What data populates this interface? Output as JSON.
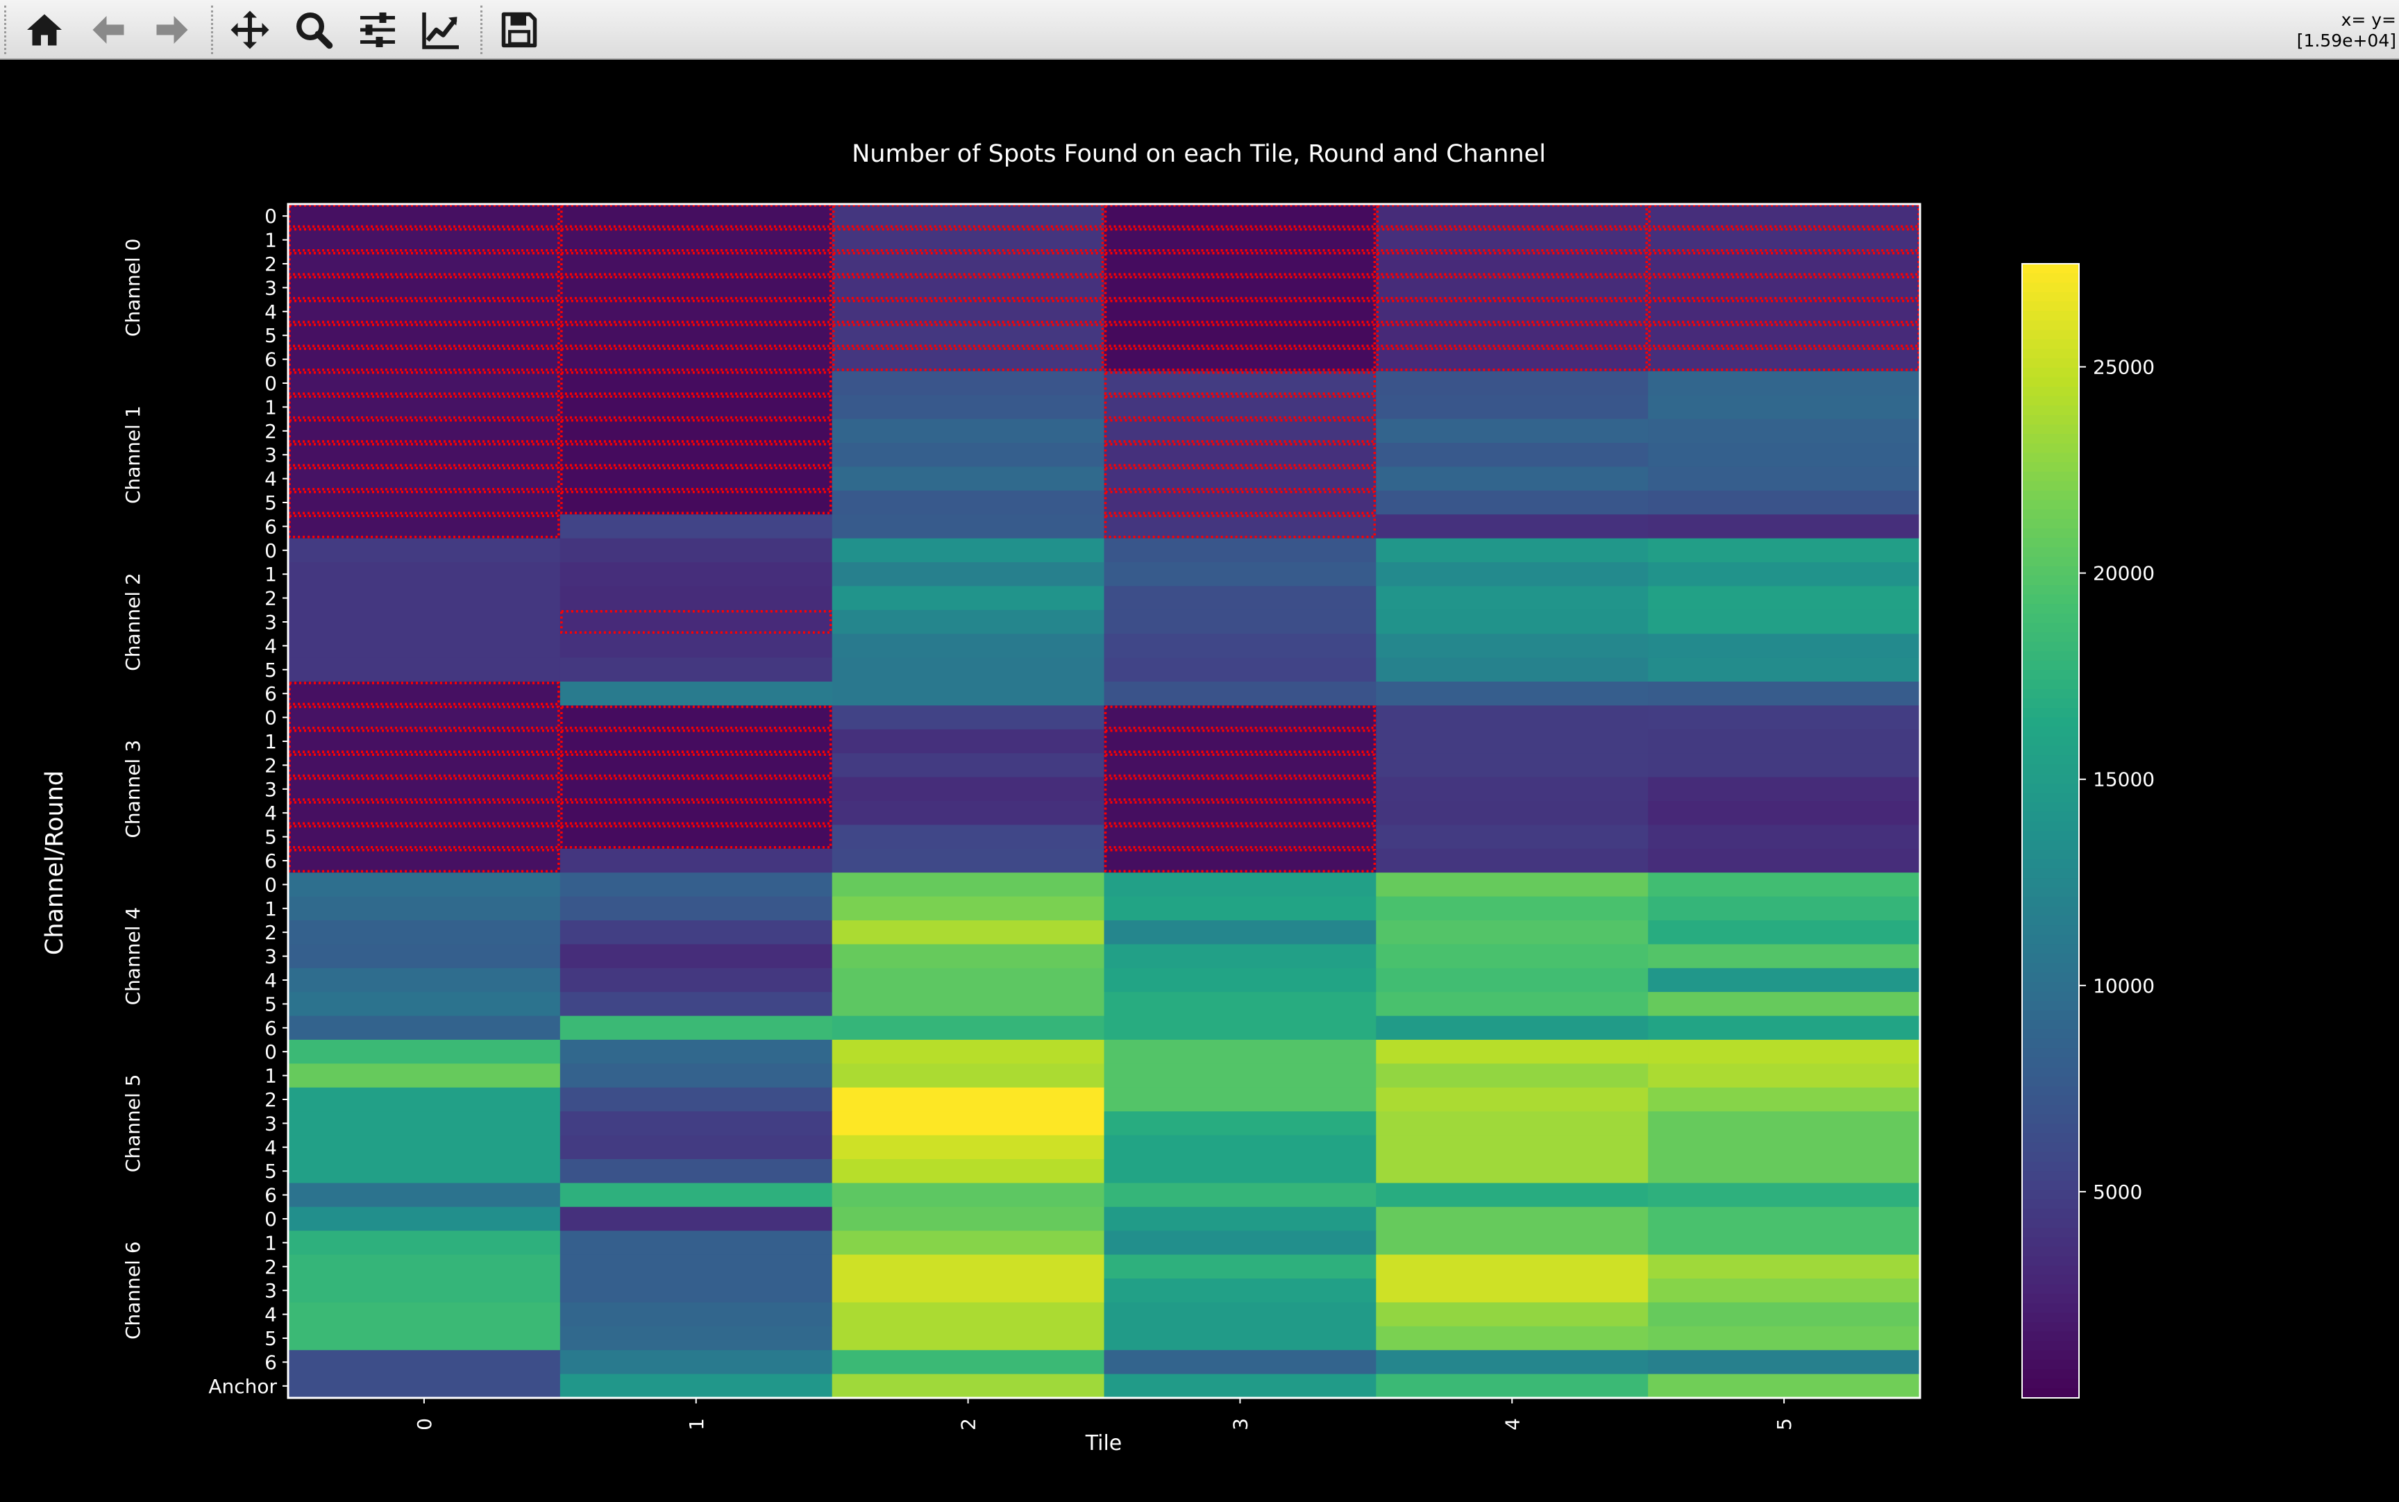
{
  "toolbar": {
    "buttons": [
      {
        "name": "home-button",
        "icon": "home-icon"
      },
      {
        "name": "back-button",
        "icon": "arrow-left-icon"
      },
      {
        "name": "forward-button",
        "icon": "arrow-right-icon"
      },
      {
        "name": "pan-button",
        "icon": "move-icon"
      },
      {
        "name": "zoom-button",
        "icon": "magnifier-icon"
      },
      {
        "name": "configure-subplots-button",
        "icon": "sliders-icon"
      },
      {
        "name": "edit-axis-button",
        "icon": "line-chart-icon"
      },
      {
        "name": "save-button",
        "icon": "floppy-disk-icon"
      }
    ],
    "coords_line1": "x= y=",
    "coords_line2": "[1.59e+04]"
  },
  "colors": {
    "background": "#000000",
    "toolbar_bg": "#e8e8e8",
    "text": "#ffffff",
    "highlight": "#ff0000"
  },
  "chart_data": {
    "type": "heatmap",
    "title": "Number of Spots Found on each Tile, Round and Channel",
    "xlabel": "Tile",
    "ylabel": "Channel/Round",
    "colormap": "viridis",
    "vmin": 0,
    "vmax": 27500,
    "colorbar_ticks": [
      5000,
      10000,
      15000,
      20000,
      25000
    ],
    "x_categories": [
      "0",
      "1",
      "2",
      "3",
      "4",
      "5"
    ],
    "channel_labels": [
      "Channel 0",
      "Channel 1",
      "Channel 2",
      "Channel 3",
      "Channel 4",
      "Channel 5",
      "Channel 6"
    ],
    "row_tick_labels": [
      "0",
      "1",
      "2",
      "3",
      "4",
      "5",
      "6",
      "0",
      "1",
      "2",
      "3",
      "4",
      "5",
      "6",
      "0",
      "1",
      "2",
      "3",
      "4",
      "5",
      "6",
      "0",
      "1",
      "2",
      "3",
      "4",
      "5",
      "6",
      "0",
      "1",
      "2",
      "3",
      "4",
      "5",
      "6",
      "0",
      "1",
      "2",
      "3",
      "4",
      "5",
      "6",
      "0",
      "1",
      "2",
      "3",
      "4",
      "5",
      "6",
      "Anchor"
    ],
    "values": [
      [
        1200,
        1000,
        4300,
        800,
        3400,
        3600
      ],
      [
        1300,
        1100,
        4200,
        900,
        3700,
        3800
      ],
      [
        1400,
        1100,
        4000,
        900,
        3300,
        3300
      ],
      [
        1200,
        1000,
        3900,
        800,
        3400,
        3200
      ],
      [
        1300,
        1100,
        4000,
        800,
        3400,
        3200
      ],
      [
        1200,
        1000,
        4400,
        700,
        3200,
        3300
      ],
      [
        1200,
        1000,
        4300,
        800,
        3300,
        3600
      ],
      [
        1400,
        900,
        7200,
        4800,
        7100,
        9000
      ],
      [
        1300,
        800,
        7600,
        4300,
        7300,
        9200
      ],
      [
        1200,
        700,
        8900,
        4200,
        8800,
        8600
      ],
      [
        1200,
        800,
        8200,
        3800,
        7600,
        8400
      ],
      [
        1300,
        800,
        9500,
        3900,
        8900,
        8100
      ],
      [
        1200,
        700,
        7600,
        3700,
        7300,
        7000
      ],
      [
        1200,
        5500,
        7800,
        4300,
        3900,
        3700
      ],
      [
        4700,
        4200,
        13700,
        7300,
        14500,
        15300
      ],
      [
        4400,
        3600,
        11900,
        7800,
        13000,
        14000
      ],
      [
        4400,
        3400,
        14100,
        6500,
        14200,
        15700
      ],
      [
        4400,
        3300,
        12500,
        6500,
        14000,
        15600
      ],
      [
        4400,
        3900,
        11200,
        5800,
        12600,
        13000
      ],
      [
        4400,
        4500,
        11000,
        5500,
        12100,
        13200
      ],
      [
        1200,
        11300,
        11000,
        7000,
        8100,
        7900
      ],
      [
        1300,
        900,
        5400,
        1100,
        4800,
        4900
      ],
      [
        1200,
        900,
        3800,
        1000,
        4800,
        4600
      ],
      [
        1200,
        900,
        4700,
        1100,
        4800,
        4600
      ],
      [
        1200,
        900,
        3500,
        1000,
        4300,
        3400
      ],
      [
        1100,
        800,
        3800,
        1000,
        4200,
        3100
      ],
      [
        1100,
        800,
        5800,
        1100,
        4700,
        3800
      ],
      [
        1200,
        4300,
        6000,
        1000,
        4300,
        3500
      ],
      [
        10000,
        8200,
        21000,
        15500,
        21000,
        19000
      ],
      [
        9500,
        7400,
        22000,
        16000,
        19500,
        18000
      ],
      [
        8500,
        5100,
        24000,
        12500,
        20000,
        17000
      ],
      [
        8200,
        3500,
        21000,
        15500,
        19500,
        20000
      ],
      [
        9800,
        4500,
        20500,
        16000,
        19000,
        14500
      ],
      [
        10500,
        5700,
        20500,
        17000,
        19500,
        21000
      ],
      [
        8700,
        18500,
        18000,
        17000,
        15000,
        16000
      ],
      [
        18500,
        9200,
        24500,
        20000,
        24500,
        24500
      ],
      [
        21000,
        8600,
        24000,
        20000,
        23000,
        24000
      ],
      [
        15500,
        6500,
        27500,
        20000,
        24000,
        22500
      ],
      [
        15500,
        5000,
        27500,
        17000,
        23500,
        21000
      ],
      [
        15500,
        4700,
        25500,
        16000,
        23500,
        21000
      ],
      [
        15500,
        7000,
        24500,
        16000,
        23500,
        21000
      ],
      [
        10500,
        17500,
        20500,
        18000,
        17000,
        17500
      ],
      [
        13500,
        3800,
        21000,
        15000,
        21000,
        19500
      ],
      [
        17500,
        8200,
        22500,
        13500,
        21000,
        19500
      ],
      [
        18000,
        8300,
        25500,
        17500,
        25500,
        23500
      ],
      [
        18000,
        8300,
        25500,
        15500,
        25500,
        22500
      ],
      [
        18500,
        9000,
        24000,
        15000,
        23000,
        21000
      ],
      [
        18500,
        9300,
        24000,
        15000,
        22000,
        21500
      ],
      [
        6500,
        11200,
        18500,
        8800,
        12500,
        11900
      ],
      [
        6500,
        14500,
        23500,
        15000,
        18500,
        21500
      ]
    ],
    "highlighted_cells": [
      [
        0,
        0
      ],
      [
        0,
        1
      ],
      [
        0,
        2
      ],
      [
        0,
        3
      ],
      [
        0,
        4
      ],
      [
        0,
        5
      ],
      [
        1,
        0
      ],
      [
        1,
        1
      ],
      [
        1,
        2
      ],
      [
        1,
        3
      ],
      [
        1,
        4
      ],
      [
        1,
        5
      ],
      [
        2,
        0
      ],
      [
        2,
        1
      ],
      [
        2,
        2
      ],
      [
        2,
        3
      ],
      [
        2,
        4
      ],
      [
        2,
        5
      ],
      [
        3,
        0
      ],
      [
        3,
        1
      ],
      [
        3,
        2
      ],
      [
        3,
        3
      ],
      [
        3,
        4
      ],
      [
        3,
        5
      ],
      [
        4,
        0
      ],
      [
        4,
        1
      ],
      [
        4,
        2
      ],
      [
        4,
        3
      ],
      [
        4,
        4
      ],
      [
        4,
        5
      ],
      [
        5,
        0
      ],
      [
        5,
        1
      ],
      [
        5,
        2
      ],
      [
        5,
        3
      ],
      [
        5,
        4
      ],
      [
        5,
        5
      ],
      [
        6,
        0
      ],
      [
        6,
        1
      ],
      [
        6,
        2
      ],
      [
        6,
        3
      ],
      [
        6,
        4
      ],
      [
        6,
        5
      ],
      [
        7,
        0
      ],
      [
        7,
        1
      ],
      [
        7,
        3
      ],
      [
        8,
        0
      ],
      [
        8,
        1
      ],
      [
        8,
        3
      ],
      [
        9,
        0
      ],
      [
        9,
        1
      ],
      [
        9,
        3
      ],
      [
        10,
        0
      ],
      [
        10,
        1
      ],
      [
        10,
        3
      ],
      [
        11,
        0
      ],
      [
        11,
        1
      ],
      [
        11,
        3
      ],
      [
        12,
        0
      ],
      [
        12,
        1
      ],
      [
        12,
        3
      ],
      [
        13,
        0
      ],
      [
        13,
        3
      ],
      [
        17,
        1
      ],
      [
        20,
        0
      ],
      [
        21,
        0
      ],
      [
        21,
        1
      ],
      [
        21,
        3
      ],
      [
        22,
        0
      ],
      [
        22,
        1
      ],
      [
        22,
        3
      ],
      [
        23,
        0
      ],
      [
        23,
        1
      ],
      [
        23,
        3
      ],
      [
        24,
        0
      ],
      [
        24,
        1
      ],
      [
        24,
        3
      ],
      [
        25,
        0
      ],
      [
        25,
        1
      ],
      [
        25,
        3
      ],
      [
        26,
        0
      ],
      [
        26,
        1
      ],
      [
        26,
        3
      ],
      [
        27,
        0
      ],
      [
        27,
        3
      ]
    ]
  }
}
